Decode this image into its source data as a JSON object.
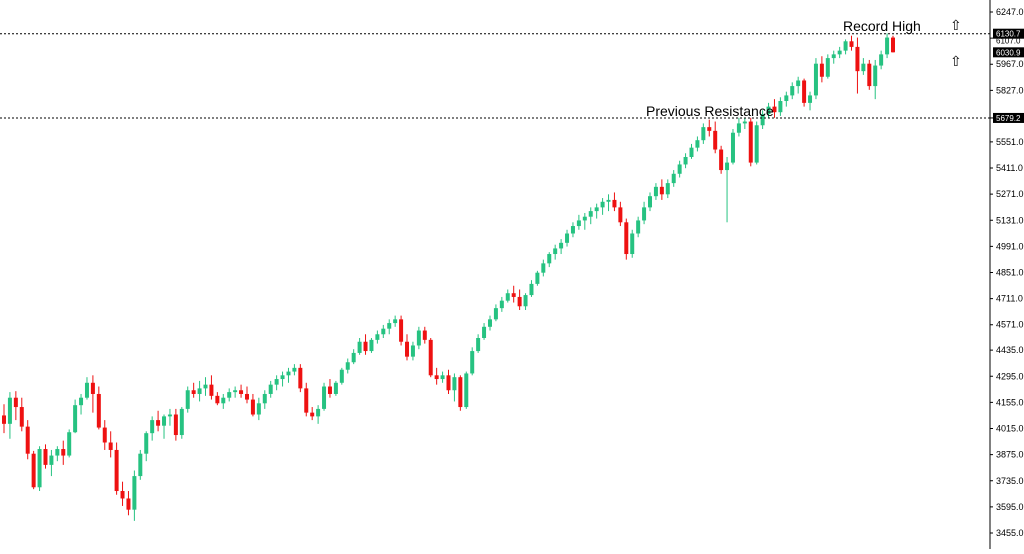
{
  "chart_data": {
    "type": "candlestick",
    "colors": {
      "up": "#26c281",
      "down": "#ee1111",
      "background": "#ffffff",
      "level_line": "#000000"
    },
    "y_axis": {
      "ticks": [
        6247.0,
        6107.0,
        5967.0,
        5827.0,
        5679.2,
        5551.0,
        5411.0,
        5271.0,
        5131.0,
        4991.0,
        4851.0,
        4711.0,
        4571.0,
        4435.0,
        4295.0,
        4155.0,
        4015.0,
        3875.0,
        3735.0,
        3595.0,
        3455.0
      ],
      "labels": [
        "6247.0",
        "6107.0",
        "5967.0",
        "5827.0",
        "5679.2",
        "5551.0",
        "5411.0",
        "5271.0",
        "5131.0",
        "4991.0",
        "4851.0",
        "4711.0",
        "4571.0",
        "4435.0",
        "4295.0",
        "4155.0",
        "4015.0",
        "3875.0",
        "3735.0",
        "3595.0",
        "3455.0"
      ],
      "range": [
        3440,
        6275
      ]
    },
    "levels": [
      {
        "label": "Record High",
        "value": 6130.7,
        "tag": "6130.7"
      },
      {
        "label": "Previous Resistance",
        "value": 5679.2,
        "tag": "5679.2"
      }
    ],
    "current_price": {
      "value": 6030.9,
      "tag": "6030.9"
    },
    "grid": false,
    "candles": [
      [
        4085,
        4145,
        3990,
        4040
      ],
      [
        4040,
        4210,
        3960,
        4180
      ],
      [
        4180,
        4215,
        4060,
        4130
      ],
      [
        4130,
        4180,
        4000,
        4025
      ],
      [
        4025,
        4060,
        3850,
        3880
      ],
      [
        3880,
        3895,
        3690,
        3700
      ],
      [
        3700,
        3920,
        3680,
        3905
      ],
      [
        3905,
        3930,
        3800,
        3820
      ],
      [
        3820,
        3900,
        3760,
        3870
      ],
      [
        3870,
        3920,
        3840,
        3905
      ],
      [
        3905,
        3950,
        3820,
        3870
      ],
      [
        3870,
        4010,
        3860,
        3995
      ],
      [
        3995,
        4170,
        3990,
        4140
      ],
      [
        4140,
        4200,
        4090,
        4180
      ],
      [
        4180,
        4290,
        4170,
        4260
      ],
      [
        4260,
        4300,
        4100,
        4200
      ],
      [
        4200,
        4240,
        4010,
        4020
      ],
      [
        4020,
        4060,
        3900,
        3940
      ],
      [
        3940,
        4000,
        3860,
        3900
      ],
      [
        3900,
        3940,
        3660,
        3680
      ],
      [
        3680,
        3730,
        3600,
        3640
      ],
      [
        3640,
        3680,
        3550,
        3580
      ],
      [
        3580,
        3790,
        3520,
        3760
      ],
      [
        3760,
        3900,
        3740,
        3880
      ],
      [
        3880,
        4000,
        3840,
        3990
      ],
      [
        3990,
        4080,
        3950,
        4060
      ],
      [
        4060,
        4110,
        4000,
        4030
      ],
      [
        4030,
        4090,
        3960,
        4080
      ],
      [
        4080,
        4120,
        4030,
        4090
      ],
      [
        4090,
        4120,
        3950,
        3980
      ],
      [
        3980,
        4130,
        3960,
        4120
      ],
      [
        4120,
        4240,
        4100,
        4220
      ],
      [
        4220,
        4260,
        4180,
        4200
      ],
      [
        4200,
        4270,
        4160,
        4230
      ],
      [
        4230,
        4290,
        4190,
        4250
      ],
      [
        4250,
        4300,
        4170,
        4190
      ],
      [
        4190,
        4210,
        4140,
        4150
      ],
      [
        4150,
        4200,
        4120,
        4180
      ],
      [
        4180,
        4230,
        4160,
        4210
      ],
      [
        4210,
        4240,
        4180,
        4220
      ],
      [
        4220,
        4250,
        4180,
        4200
      ],
      [
        4200,
        4240,
        4150,
        4170
      ],
      [
        4170,
        4200,
        4080,
        4090
      ],
      [
        4090,
        4180,
        4060,
        4150
      ],
      [
        4150,
        4220,
        4120,
        4200
      ],
      [
        4200,
        4270,
        4180,
        4250
      ],
      [
        4250,
        4300,
        4220,
        4280
      ],
      [
        4280,
        4320,
        4240,
        4300
      ],
      [
        4300,
        4340,
        4260,
        4320
      ],
      [
        4320,
        4360,
        4300,
        4340
      ],
      [
        4340,
        4360,
        4210,
        4230
      ],
      [
        4230,
        4260,
        4080,
        4100
      ],
      [
        4100,
        4130,
        4060,
        4080
      ],
      [
        4080,
        4140,
        4040,
        4120
      ],
      [
        4120,
        4260,
        4110,
        4240
      ],
      [
        4240,
        4280,
        4180,
        4200
      ],
      [
        4200,
        4270,
        4190,
        4260
      ],
      [
        4260,
        4340,
        4250,
        4330
      ],
      [
        4330,
        4390,
        4310,
        4370
      ],
      [
        4370,
        4440,
        4360,
        4420
      ],
      [
        4420,
        4500,
        4410,
        4480
      ],
      [
        4480,
        4520,
        4410,
        4430
      ],
      [
        4430,
        4500,
        4420,
        4490
      ],
      [
        4490,
        4540,
        4470,
        4520
      ],
      [
        4520,
        4570,
        4500,
        4550
      ],
      [
        4550,
        4600,
        4520,
        4580
      ],
      [
        4580,
        4620,
        4560,
        4600
      ],
      [
        4600,
        4620,
        4460,
        4480
      ],
      [
        4480,
        4520,
        4380,
        4400
      ],
      [
        4400,
        4480,
        4380,
        4460
      ],
      [
        4460,
        4560,
        4440,
        4540
      ],
      [
        4540,
        4560,
        4470,
        4490
      ],
      [
        4490,
        4500,
        4290,
        4300
      ],
      [
        4300,
        4340,
        4250,
        4280
      ],
      [
        4280,
        4320,
        4260,
        4300
      ],
      [
        4300,
        4330,
        4200,
        4220
      ],
      [
        4220,
        4310,
        4160,
        4290
      ],
      [
        4290,
        4300,
        4110,
        4130
      ],
      [
        4130,
        4320,
        4120,
        4310
      ],
      [
        4310,
        4450,
        4300,
        4430
      ],
      [
        4430,
        4520,
        4420,
        4500
      ],
      [
        4500,
        4580,
        4490,
        4560
      ],
      [
        4560,
        4620,
        4540,
        4600
      ],
      [
        4600,
        4680,
        4590,
        4660
      ],
      [
        4660,
        4720,
        4640,
        4700
      ],
      [
        4700,
        4760,
        4690,
        4740
      ],
      [
        4740,
        4780,
        4690,
        4720
      ],
      [
        4720,
        4760,
        4650,
        4670
      ],
      [
        4670,
        4740,
        4650,
        4730
      ],
      [
        4730,
        4810,
        4720,
        4790
      ],
      [
        4790,
        4860,
        4780,
        4850
      ],
      [
        4850,
        4920,
        4830,
        4900
      ],
      [
        4900,
        4960,
        4880,
        4950
      ],
      [
        4950,
        5000,
        4920,
        4980
      ],
      [
        4980,
        5030,
        4950,
        5010
      ],
      [
        5010,
        5080,
        4990,
        5060
      ],
      [
        5060,
        5120,
        5040,
        5100
      ],
      [
        5100,
        5160,
        5080,
        5130
      ],
      [
        5130,
        5170,
        5080,
        5150
      ],
      [
        5150,
        5200,
        5110,
        5180
      ],
      [
        5180,
        5220,
        5140,
        5200
      ],
      [
        5200,
        5250,
        5160,
        5230
      ],
      [
        5230,
        5270,
        5180,
        5240
      ],
      [
        5240,
        5280,
        5180,
        5200
      ],
      [
        5200,
        5230,
        5100,
        5120
      ],
      [
        5120,
        5140,
        4920,
        4950
      ],
      [
        4950,
        5080,
        4930,
        5060
      ],
      [
        5060,
        5150,
        5040,
        5130
      ],
      [
        5130,
        5230,
        5110,
        5200
      ],
      [
        5200,
        5280,
        5180,
        5260
      ],
      [
        5260,
        5330,
        5240,
        5310
      ],
      [
        5310,
        5350,
        5240,
        5270
      ],
      [
        5270,
        5350,
        5250,
        5330
      ],
      [
        5330,
        5400,
        5310,
        5380
      ],
      [
        5380,
        5450,
        5360,
        5430
      ],
      [
        5430,
        5490,
        5410,
        5470
      ],
      [
        5470,
        5540,
        5460,
        5520
      ],
      [
        5520,
        5580,
        5500,
        5560
      ],
      [
        5560,
        5650,
        5540,
        5630
      ],
      [
        5630,
        5670,
        5580,
        5610
      ],
      [
        5610,
        5660,
        5490,
        5510
      ],
      [
        5510,
        5530,
        5380,
        5400
      ],
      [
        5400,
        5470,
        5120,
        5440
      ],
      [
        5440,
        5620,
        5430,
        5600
      ],
      [
        5600,
        5680,
        5580,
        5650
      ],
      [
        5650,
        5680,
        5620,
        5660
      ],
      [
        5660,
        5680,
        5420,
        5440
      ],
      [
        5440,
        5660,
        5430,
        5640
      ],
      [
        5640,
        5720,
        5620,
        5700
      ],
      [
        5700,
        5760,
        5680,
        5740
      ],
      [
        5740,
        5780,
        5680,
        5710
      ],
      [
        5710,
        5790,
        5690,
        5770
      ],
      [
        5770,
        5820,
        5740,
        5800
      ],
      [
        5800,
        5870,
        5780,
        5850
      ],
      [
        5850,
        5900,
        5810,
        5880
      ],
      [
        5880,
        5890,
        5740,
        5760
      ],
      [
        5760,
        5820,
        5720,
        5800
      ],
      [
        5800,
        6000,
        5780,
        5970
      ],
      [
        5970,
        6010,
        5870,
        5900
      ],
      [
        5900,
        6020,
        5890,
        6000
      ],
      [
        6000,
        6040,
        5970,
        6020
      ],
      [
        6020,
        6060,
        6000,
        6040
      ],
      [
        6040,
        6100,
        6020,
        6090
      ],
      [
        6090,
        6120,
        6040,
        6060
      ],
      [
        6060,
        6110,
        5810,
        5930
      ],
      [
        5930,
        6000,
        5910,
        5970
      ],
      [
        5970,
        5990,
        5830,
        5850
      ],
      [
        5850,
        5990,
        5780,
        5960
      ],
      [
        5960,
        6040,
        5940,
        6020
      ],
      [
        6020,
        6132,
        6000,
        6110
      ],
      [
        6110,
        6120,
        6030,
        6031
      ]
    ]
  },
  "annotations": {
    "record_high": "Record High",
    "previous_resistance": "Previous Resistance",
    "small_level_label": "6107.0"
  },
  "icons": {
    "up_arrow_top": "up-arrow-icon",
    "up_arrow_current": "up-arrow-icon"
  }
}
